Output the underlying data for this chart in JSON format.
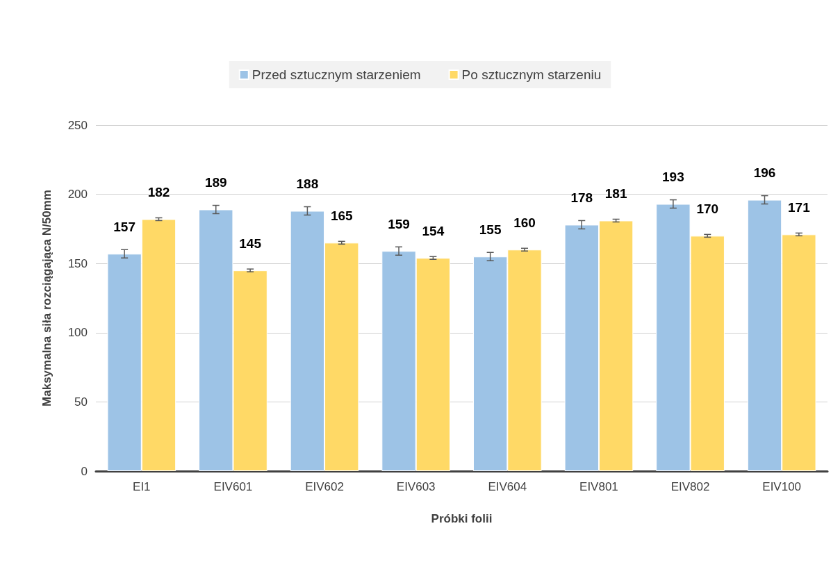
{
  "chart_data": {
    "type": "bar",
    "xlabel": "Próbki folii",
    "ylabel": "Maksymalna siła rozciągająca N/50mm",
    "categories": [
      "EI1",
      "EIV601",
      "EIV602",
      "EIV603",
      "EIV604",
      "EIV801",
      "EIV802",
      "EIV100"
    ],
    "series": [
      {
        "name": "Przed sztucznym starzeniem",
        "color": "#9dc3e6",
        "values": [
          157,
          189,
          188,
          159,
          155,
          178,
          193,
          196
        ],
        "errors": [
          3,
          3,
          3,
          3,
          3,
          3,
          3,
          3
        ]
      },
      {
        "name": "Po sztucznym starzeniu",
        "color": "#ffd966",
        "values": [
          182,
          145,
          165,
          154,
          160,
          181,
          170,
          171
        ],
        "errors": [
          1,
          1,
          1,
          1,
          1,
          1,
          1,
          1
        ]
      }
    ],
    "ylim": [
      0,
      250
    ],
    "yticks": [
      0,
      50,
      100,
      150,
      200,
      250
    ],
    "grid": "y",
    "legend": "top",
    "data_labels": true
  }
}
